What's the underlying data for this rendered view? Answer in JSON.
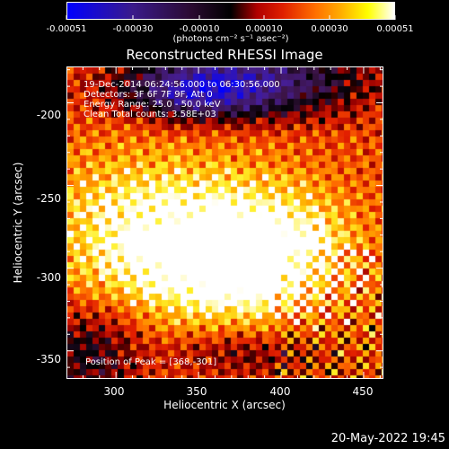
{
  "colorbar": {
    "tick_labels": [
      "-0.00051",
      "-0.00030",
      "-0.00010",
      "0.00010",
      "0.00030",
      "0.00051"
    ],
    "units_label": "(photons cm⁻² s⁻¹ asec⁻²)"
  },
  "title": "Reconstructed RHESSI Image",
  "annotations": {
    "time_range": "19-Dec-2014 06:24:56.000 to 06:30:56.000",
    "detectors": "Detectors: 3F 6F 7F 9F, Att 0",
    "energy": "Energy Range: 25.0 - 50.0 keV",
    "clean": "Clean     Total counts: 3.58E+03",
    "peak": "Position of Peak = [368,-301]"
  },
  "axes": {
    "xlabel": "Heliocentric X (arcsec)",
    "ylabel": "Heliocentric Y (arcsec)",
    "x_ticks": [
      "300",
      "350",
      "400",
      "450"
    ],
    "y_ticks": [
      "-200",
      "-250",
      "-300",
      "-350"
    ]
  },
  "timestamp": "20-May-2022 19:45",
  "chart_data": {
    "type": "heatmap",
    "title": "Reconstructed RHESSI Image",
    "xlabel": "Heliocentric X (arcsec)",
    "ylabel": "Heliocentric Y (arcsec)",
    "xlim": [
      270,
      462
    ],
    "ylim": [
      -367,
      -178
    ],
    "colorbar_range": [
      -0.00051,
      0.00051
    ],
    "peak": [
      368,
      -301
    ],
    "colors": {
      "negative": "#0000ff",
      "zero": "#000000",
      "low": "#b00000",
      "mid": "#ff7000",
      "high": "#ffff00",
      "max": "#ffffff"
    }
  }
}
